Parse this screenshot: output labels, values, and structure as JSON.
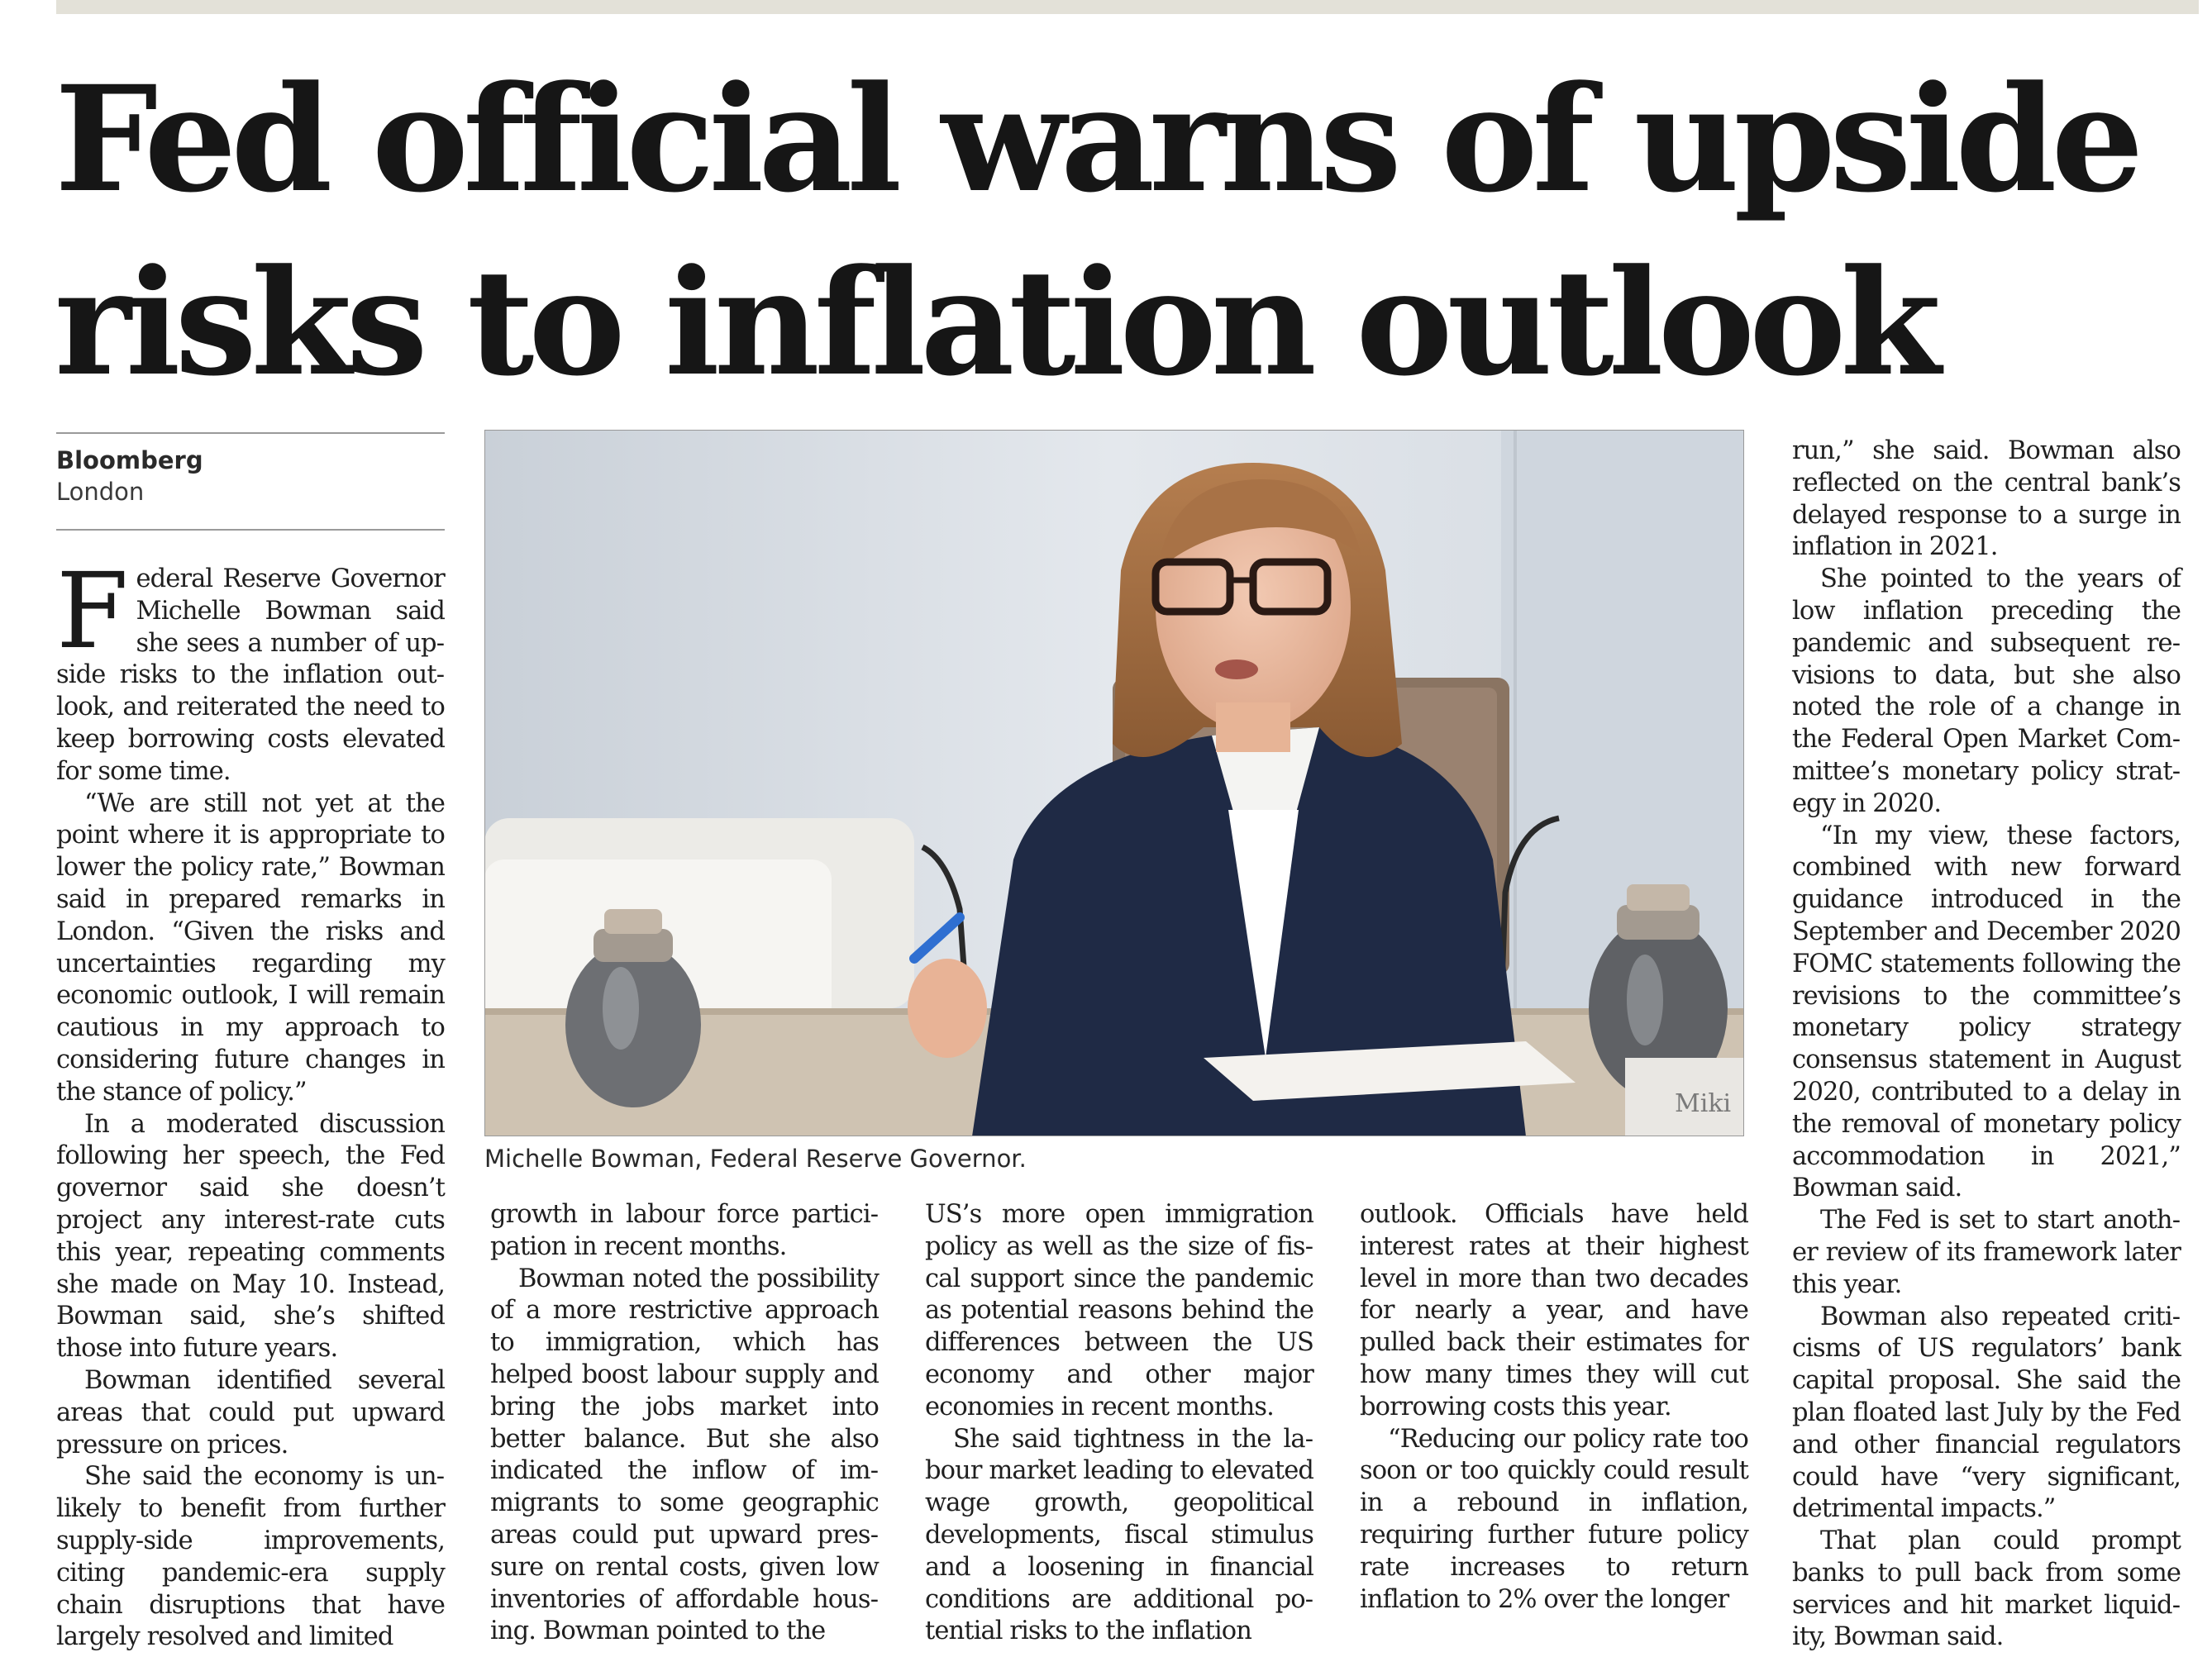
{
  "headline": "Fed official warns of upside risks to inflation outlook",
  "byline": {
    "organization": "Bloomberg",
    "location": "London"
  },
  "photo": {
    "caption": "Michelle Bowman, Federal Reserve Governor.",
    "nameplate_text": "Miki"
  },
  "col1": {
    "dropcap": "F",
    "p1": "ederal Reserve Governor Michelle Bowman said she sees a number of up­side risks to the inflation out­look, and reiterated the need to keep borrowing costs elevated for some time.",
    "p2": "“We are still not yet at the point where it is appropriate to lower the policy rate,” Bow­man said in prepared remarks in London. “Given the risks and uncertainties regarding my economic outlook, I will re­main cautious in my approach to considering future changes in the stance of policy.”",
    "p3": "In a moderated discus­sion following her speech, the Fed governor said she doesn’t project any interest-rate cuts this year, repeating comments she made on May 10. Instead, Bowman said, she’s shifted those into future years.",
    "p4": "Bowman identified several areas that could put upward pressure on prices.",
    "p5": "She said the economy is un­likely to benefit from further supply-side improvements, citing pandemic-era supply chain disruptions that have largely resolved and limited"
  },
  "col2": {
    "p1": "growth in labour force partici­pation in recent months.",
    "p2": "Bowman noted the possi­bility of a more restrictive ap­proach to immigration, which has helped boost labour sup­ply and bring the jobs market into better balance. But she also indicated the inflow of im­migrants to some geographic areas could put upward pres­sure on rental costs, given low inventories of affordable hous­ing. Bowman pointed to the"
  },
  "col3": {
    "p1": "US’s more open immigration policy as well as the size of fis­cal support since the pandemic as potential reasons behind the differences between the US economy and other major economies in recent months.",
    "p2": "She said tightness in the la­bour market leading to elevat­ed wage growth, geopolitical developments, fiscal stimulus and a loosening in financial conditions are additional po­tential risks to the inflation"
  },
  "col4": {
    "p1": "outlook. Officials have held interest rates at their high­est level in more than two decades for nearly a year, and have pulled back their es­timates for how many times they will cut borrowing costs this year.",
    "p2": "“Reducing our policy rate too soon or too quickly could result in a rebound in infla­tion, requiring further future policy rate increases to return inflation to 2% over the longer"
  },
  "col5": {
    "p1": "run,” she said. Bowman also reflected on the central bank’s delayed response to a surge in inflation in 2021.",
    "p2": "She pointed to the years of low inflation preceding the pandemic and subsequent re­visions to data, but she also noted the role of a change in the Federal Open Market Com­mittee’s monetary policy strat­egy in 2020.",
    "p3": "“In my view, these fac­tors, combined with new for­ward guidance introduced in the September and December 2020 FOMC statements fol­lowing the revisions to the committee’s monetary policy strategy consensus statement in August 2020, contributed to a delay in the removal of mon­etary policy accommodation in 2021,” Bowman said.",
    "p4": "The Fed is set to start anoth­er review of its framework later this year.",
    "p5": "Bowman also repeated criti­cisms of US regulators’ bank capital proposal. She said the plan floated last July by the Fed and other financial regulators could have “very significant, detrimental impacts.”",
    "p6": "That plan could prompt banks to pull back from some services and hit market liquid­ity, Bowman said."
  }
}
